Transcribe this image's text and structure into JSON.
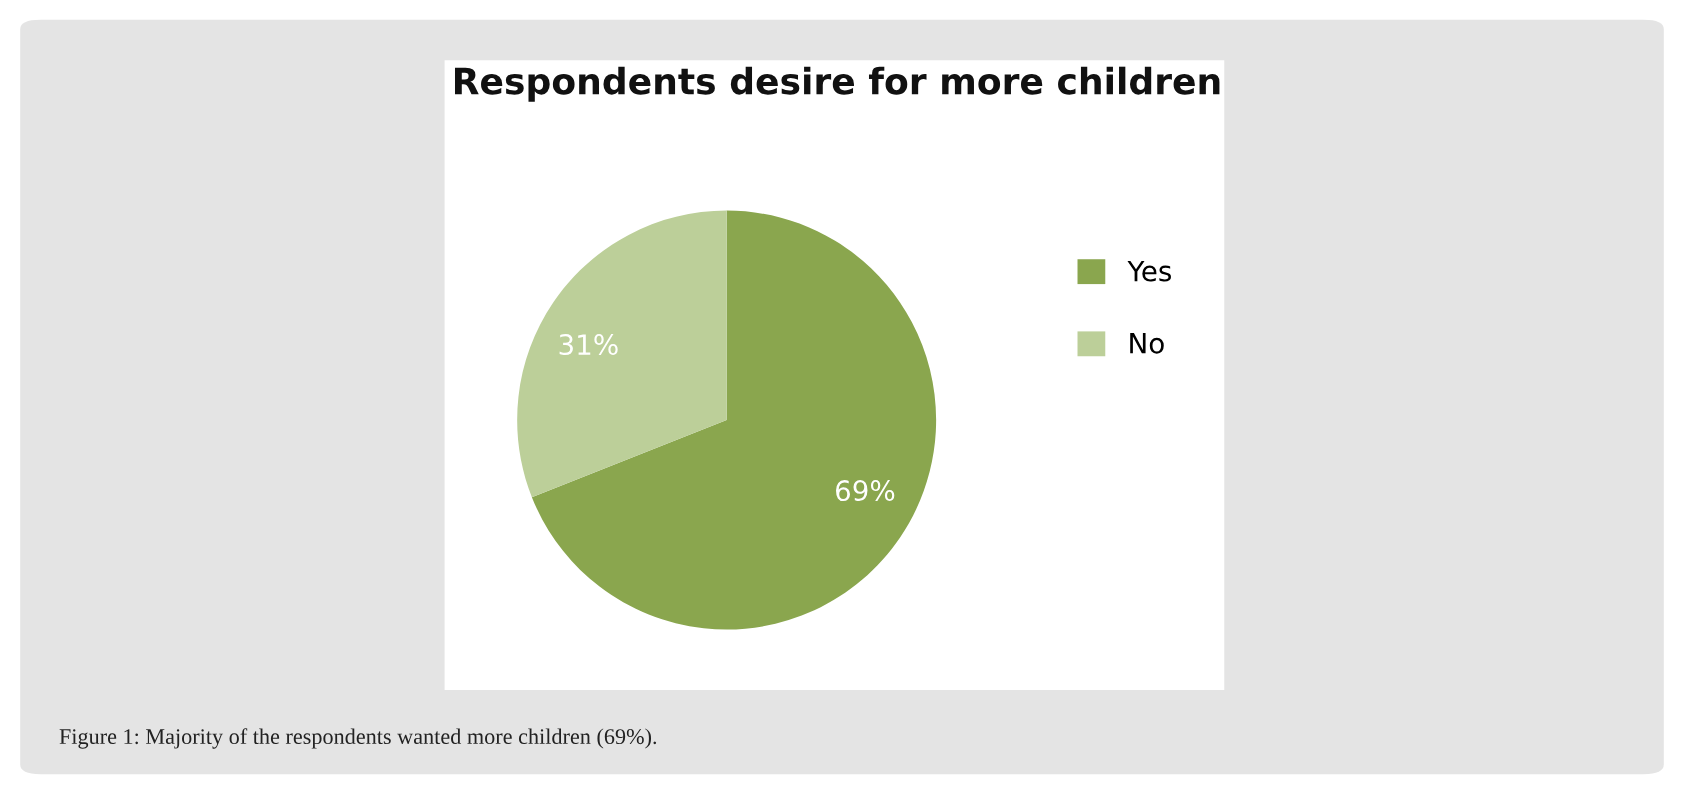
{
  "chart_data": {
    "type": "pie",
    "title": "Respondents desire for more children",
    "categories": [
      "Yes",
      "No"
    ],
    "values": [
      69,
      31
    ],
    "colors": [
      "#8aa64e",
      "#bccf99"
    ],
    "value_labels": [
      "69%",
      "31%"
    ],
    "legend": "right",
    "annotations": [
      "Figure 1: Majority of the respondents wanted more children (69%)."
    ]
  }
}
